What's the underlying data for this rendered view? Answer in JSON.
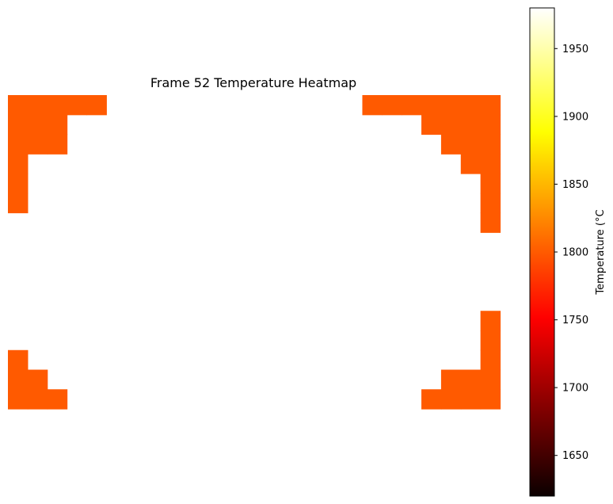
{
  "chart_data": {
    "type": "heatmap",
    "title": "Frame 52 Temperature Heatmap",
    "grid_size": [
      16,
      25
    ],
    "cell_value": 1800,
    "hot_cells": [
      [
        0,
        0
      ],
      [
        0,
        1
      ],
      [
        0,
        2
      ],
      [
        0,
        3
      ],
      [
        0,
        4
      ],
      [
        0,
        18
      ],
      [
        0,
        19
      ],
      [
        0,
        20
      ],
      [
        0,
        21
      ],
      [
        0,
        22
      ],
      [
        0,
        23
      ],
      [
        0,
        24
      ],
      [
        1,
        0
      ],
      [
        1,
        1
      ],
      [
        1,
        2
      ],
      [
        1,
        21
      ],
      [
        1,
        22
      ],
      [
        1,
        23
      ],
      [
        1,
        24
      ],
      [
        2,
        0
      ],
      [
        2,
        1
      ],
      [
        2,
        2
      ],
      [
        2,
        22
      ],
      [
        2,
        23
      ],
      [
        2,
        24
      ],
      [
        3,
        0
      ],
      [
        3,
        23
      ],
      [
        3,
        24
      ],
      [
        4,
        0
      ],
      [
        4,
        24
      ],
      [
        5,
        0
      ],
      [
        5,
        24
      ],
      [
        6,
        24
      ],
      [
        11,
        24
      ],
      [
        12,
        24
      ],
      [
        13,
        0
      ],
      [
        13,
        24
      ],
      [
        14,
        0
      ],
      [
        14,
        1
      ],
      [
        14,
        22
      ],
      [
        14,
        23
      ],
      [
        14,
        24
      ],
      [
        15,
        0
      ],
      [
        15,
        1
      ],
      [
        15,
        2
      ],
      [
        15,
        21
      ],
      [
        15,
        22
      ],
      [
        15,
        23
      ],
      [
        15,
        24
      ]
    ],
    "colorbar": {
      "label": "Temperature (°C",
      "colormap": "hot",
      "range": [
        1620,
        1980
      ],
      "ticks": [
        "1650",
        "1700",
        "1750",
        "1800",
        "1850",
        "1900",
        "1950"
      ]
    },
    "grid": false,
    "axes_visible": false
  }
}
